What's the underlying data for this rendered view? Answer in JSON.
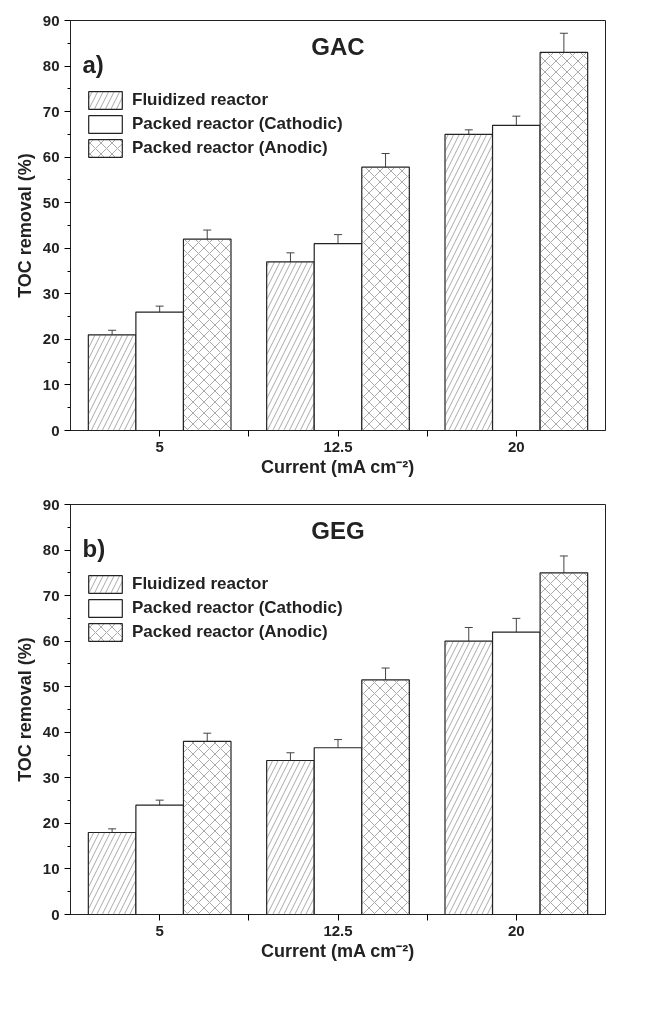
{
  "chart_data": [
    {
      "type": "bar",
      "title": "GAC",
      "xlabel": "Current (mA cm⁻²)",
      "ylabel": "TOC removal (%)",
      "annotations": [
        "a)"
      ],
      "categories": [
        "5",
        "12.5",
        "20"
      ],
      "ylim": [
        0,
        90
      ],
      "yticks": [
        0,
        10,
        20,
        30,
        40,
        50,
        60,
        70,
        80,
        90
      ],
      "legend": "top left",
      "series": [
        {
          "name": "Fluidized reactor",
          "color": "#ffffff",
          "values": [
            21,
            37,
            65
          ],
          "errors": [
            1,
            2,
            1
          ]
        },
        {
          "name": "Packed reactor (Cathodic)",
          "color": "#ffffff",
          "values": [
            26,
            41,
            67
          ],
          "errors": [
            1.3,
            2,
            2
          ]
        },
        {
          "name": "Packed reactor (Anodic)",
          "color": "#ffffff",
          "values": [
            42,
            57.8,
            83
          ],
          "errors": [
            2,
            3,
            4.2
          ]
        }
      ]
    },
    {
      "type": "bar",
      "title": "GEG",
      "xlabel": "Current (mA cm⁻²)",
      "ylabel": "TOC removal (%)",
      "annotations": [
        "b)"
      ],
      "categories": [
        "5",
        "12.5",
        "20"
      ],
      "ylim": [
        0,
        90
      ],
      "yticks": [
        0,
        10,
        20,
        30,
        40,
        50,
        60,
        70,
        80,
        90
      ],
      "legend": "top left",
      "series": [
        {
          "name": "Fluidized reactor",
          "color": "#ffffff",
          "values": [
            18,
            33.8,
            60
          ],
          "errors": [
            0.8,
            1.7,
            3
          ]
        },
        {
          "name": "Packed reactor (Cathodic)",
          "color": "#ffffff",
          "values": [
            24,
            36.6,
            62
          ],
          "errors": [
            1.1,
            1.8,
            3
          ]
        },
        {
          "name": "Packed reactor (Anodic)",
          "color": "#ffffff",
          "values": [
            38,
            51.5,
            75
          ],
          "errors": [
            1.8,
            2.6,
            3.7
          ]
        }
      ]
    }
  ]
}
